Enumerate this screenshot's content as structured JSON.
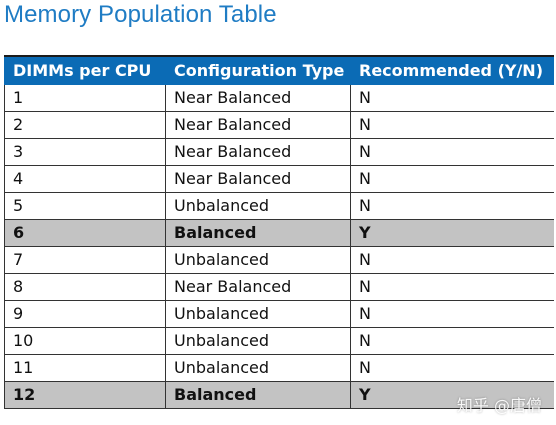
{
  "title": "Memory Population Table",
  "table": {
    "headers": [
      "DIMMs per CPU",
      "Configuration Type",
      "Recommended (Y/N)"
    ],
    "rows": [
      {
        "dimms": "1",
        "config": "Near Balanced",
        "recommended": "N",
        "highlighted": false
      },
      {
        "dimms": "2",
        "config": "Near Balanced",
        "recommended": "N",
        "highlighted": false
      },
      {
        "dimms": "3",
        "config": "Near Balanced",
        "recommended": "N",
        "highlighted": false
      },
      {
        "dimms": "4",
        "config": "Near Balanced",
        "recommended": "N",
        "highlighted": false
      },
      {
        "dimms": "5",
        "config": "Unbalanced",
        "recommended": "N",
        "highlighted": false
      },
      {
        "dimms": "6",
        "config": "Balanced",
        "recommended": "Y",
        "highlighted": true
      },
      {
        "dimms": "7",
        "config": "Unbalanced",
        "recommended": "N",
        "highlighted": false
      },
      {
        "dimms": "8",
        "config": "Near Balanced",
        "recommended": "N",
        "highlighted": false
      },
      {
        "dimms": "9",
        "config": "Unbalanced",
        "recommended": "N",
        "highlighted": false
      },
      {
        "dimms": "10",
        "config": "Unbalanced",
        "recommended": "N",
        "highlighted": false
      },
      {
        "dimms": "11",
        "config": "Unbalanced",
        "recommended": "N",
        "highlighted": false
      },
      {
        "dimms": "12",
        "config": "Balanced",
        "recommended": "Y",
        "highlighted": true
      }
    ]
  },
  "colors": {
    "title": "#1f7cc4",
    "header_bg": "#0b6bb5",
    "header_text": "#ffffff",
    "highlight_bg": "#c3c3c3"
  },
  "watermark": "知乎 @唐僧"
}
